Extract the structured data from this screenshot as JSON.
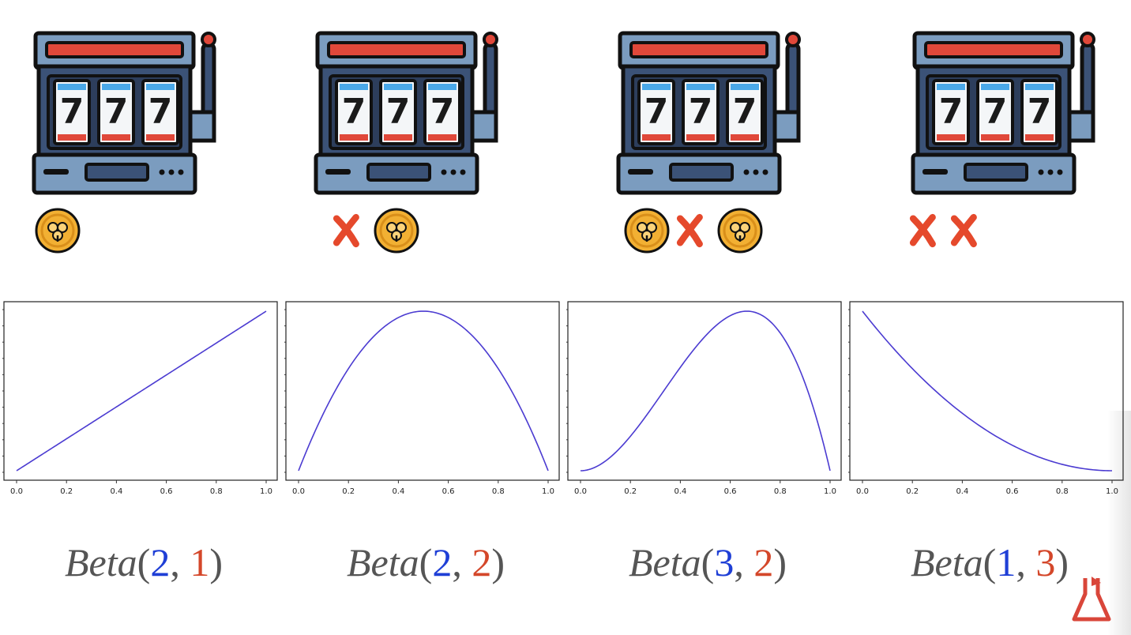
{
  "colors": {
    "reel_red": "#e0483a",
    "body": "#3b5277",
    "body_light": "#7b9cbf",
    "window_dark": "#2d3e5c",
    "coin": "#f2b033",
    "coin_dark": "#d98f1a",
    "cross": "#e5492c",
    "curve": "#4b3bd1",
    "alpha": "#1f3fd6",
    "beta": "#d4472a",
    "caption_gray": "#555555"
  },
  "machine": {
    "reel_digit": "7"
  },
  "panels": [
    {
      "outcomes": [
        "win"
      ],
      "caption": {
        "fn": "Beta",
        "a": "2",
        "b": "1"
      }
    },
    {
      "outcomes": [
        "loss",
        "win"
      ],
      "caption": {
        "fn": "Beta",
        "a": "2",
        "b": "2"
      }
    },
    {
      "outcomes": [
        "win",
        "loss",
        "win"
      ],
      "caption": {
        "fn": "Beta",
        "a": "3",
        "b": "2"
      }
    },
    {
      "outcomes": [
        "loss",
        "loss"
      ],
      "caption": {
        "fn": "Beta",
        "a": "1",
        "b": "3"
      }
    }
  ],
  "chart_data": [
    {
      "type": "line",
      "series": [
        {
          "alpha": 2,
          "beta": 1
        }
      ],
      "xlim": [
        0,
        1
      ],
      "xticks": [
        "0.0",
        "0.2",
        "0.4",
        "0.6",
        "0.8",
        "1.0"
      ],
      "yticks_labeled": false
    },
    {
      "type": "line",
      "series": [
        {
          "alpha": 2,
          "beta": 2
        }
      ],
      "xlim": [
        0,
        1
      ],
      "xticks": [
        "0.0",
        "0.2",
        "0.4",
        "0.6",
        "0.8",
        "1.0"
      ],
      "yticks_labeled": false
    },
    {
      "type": "line",
      "series": [
        {
          "alpha": 3,
          "beta": 2
        }
      ],
      "xlim": [
        0,
        1
      ],
      "xticks": [
        "0.0",
        "0.2",
        "0.4",
        "0.6",
        "0.8",
        "1.0"
      ],
      "yticks_labeled": false
    },
    {
      "type": "line",
      "series": [
        {
          "alpha": 1,
          "beta": 3
        }
      ],
      "xlim": [
        0,
        1
      ],
      "xticks": [
        "0.0",
        "0.2",
        "0.4",
        "0.6",
        "0.8",
        "1.0"
      ],
      "yticks_labeled": false
    }
  ],
  "logo_icon": "flask-icon"
}
